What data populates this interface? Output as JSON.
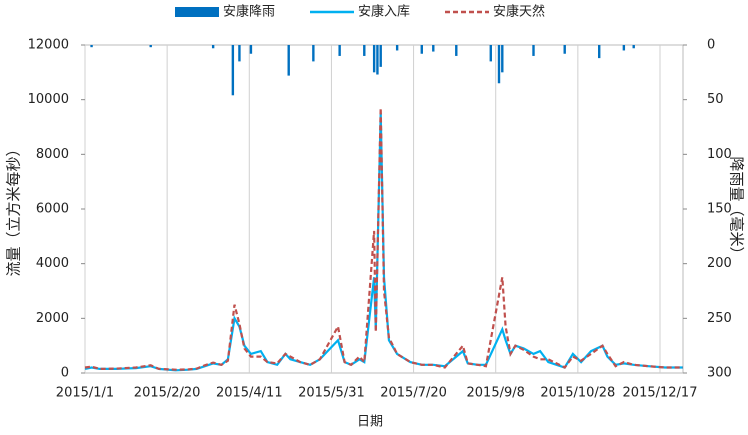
{
  "chart_data": {
    "type": "combo",
    "x_label": "日期",
    "y_label": "流量（立方米每秒）",
    "y2_label": "降雨量（毫米）",
    "xlim": [
      "2015/1/1",
      "2015/12/31"
    ],
    "xticks": [
      "2015/1/1",
      "2015/2/20",
      "2015/4/11",
      "2015/5/31",
      "2015/7/20",
      "2015/9/8",
      "2015/10/28",
      "2015/12/17"
    ],
    "ylim": [
      0,
      12000
    ],
    "yticks": [
      0,
      2000,
      4000,
      6000,
      8000,
      10000,
      12000
    ],
    "y2lim": [
      0,
      300
    ],
    "y2ticks": [
      0,
      50,
      100,
      150,
      200,
      250,
      300
    ],
    "y2_inverted": true,
    "grid": "x",
    "series": [
      {
        "name": "安康降雨",
        "type": "bar",
        "axis": "y2",
        "color": "#0070c0",
        "x": [
          "2015/1/5",
          "2015/2/10",
          "2015/3/20",
          "2015/4/1",
          "2015/4/5",
          "2015/4/12",
          "2015/5/5",
          "2015/5/20",
          "2015/6/5",
          "2015/6/20",
          "2015/6/26",
          "2015/6/28",
          "2015/6/30",
          "2015/7/10",
          "2015/7/25",
          "2015/8/1",
          "2015/8/15",
          "2015/9/5",
          "2015/9/10",
          "2015/9/12",
          "2015/10/1",
          "2015/10/20",
          "2015/11/10",
          "2015/11/25",
          "2015/12/1"
        ],
        "values": [
          2,
          2,
          3,
          46,
          15,
          8,
          28,
          15,
          10,
          10,
          25,
          27,
          20,
          5,
          8,
          6,
          10,
          15,
          35,
          25,
          10,
          8,
          12,
          5,
          3
        ]
      },
      {
        "name": "安康入库",
        "type": "line",
        "color": "#00b0f0",
        "x": [
          "2015/1/1",
          "2015/1/5",
          "2015/1/10",
          "2015/1/20",
          "2015/2/1",
          "2015/2/10",
          "2015/2/15",
          "2015/2/25",
          "2015/3/5",
          "2015/3/10",
          "2015/3/15",
          "2015/3/20",
          "2015/3/25",
          "2015/3/29",
          "2015/4/2",
          "2015/4/5",
          "2015/4/8",
          "2015/4/12",
          "2015/4/18",
          "2015/4/22",
          "2015/4/28",
          "2015/5/3",
          "2015/5/6",
          "2015/5/12",
          "2015/5/18",
          "2015/5/24",
          "2015/6/4",
          "2015/6/8",
          "2015/6/12",
          "2015/6/17",
          "2015/6/20",
          "2015/6/26",
          "2015/6/27",
          "2015/6/30",
          "2015/7/2",
          "2015/7/5",
          "2015/7/10",
          "2015/7/18",
          "2015/7/25",
          "2015/8/1",
          "2015/8/8",
          "2015/8/19",
          "2015/8/22",
          "2015/8/28",
          "2015/9/2",
          "2015/9/12",
          "2015/9/14",
          "2015/9/17",
          "2015/9/20",
          "2015/9/25",
          "2015/10/1",
          "2015/10/5",
          "2015/10/10",
          "2015/10/15",
          "2015/10/20",
          "2015/10/25",
          "2015/10/30",
          "2015/11/5",
          "2015/11/12",
          "2015/11/15",
          "2015/11/20",
          "2015/11/25",
          "2015/12/1",
          "2015/12/10",
          "2015/12/20",
          "2015/12/31"
        ],
        "values": [
          150,
          200,
          150,
          150,
          180,
          250,
          150,
          100,
          120,
          150,
          250,
          350,
          300,
          500,
          2000,
          1700,
          1000,
          700,
          800,
          400,
          300,
          700,
          500,
          400,
          300,
          500,
          1200,
          400,
          300,
          500,
          400,
          3500,
          1600,
          9500,
          3500,
          1200,
          700,
          400,
          300,
          300,
          250,
          800,
          350,
          300,
          300,
          1600,
          1200,
          700,
          1000,
          900,
          700,
          800,
          400,
          300,
          200,
          700,
          400,
          800,
          1000,
          600,
          300,
          350,
          300,
          250,
          200,
          200
        ]
      },
      {
        "name": "安康天然",
        "type": "line",
        "dashed": true,
        "color": "#c0504d",
        "x": [
          "2015/1/1",
          "2015/1/5",
          "2015/1/10",
          "2015/1/20",
          "2015/2/1",
          "2015/2/10",
          "2015/2/15",
          "2015/2/25",
          "2015/3/5",
          "2015/3/10",
          "2015/3/15",
          "2015/3/20",
          "2015/3/25",
          "2015/3/29",
          "2015/4/2",
          "2015/4/5",
          "2015/4/8",
          "2015/4/12",
          "2015/4/18",
          "2015/4/22",
          "2015/4/28",
          "2015/5/3",
          "2015/5/6",
          "2015/5/12",
          "2015/5/18",
          "2015/5/24",
          "2015/6/4",
          "2015/6/8",
          "2015/6/12",
          "2015/6/17",
          "2015/6/20",
          "2015/6/26",
          "2015/6/27",
          "2015/6/30",
          "2015/7/2",
          "2015/7/5",
          "2015/7/10",
          "2015/7/18",
          "2015/7/25",
          "2015/8/1",
          "2015/8/8",
          "2015/8/19",
          "2015/8/22",
          "2015/8/28",
          "2015/9/2",
          "2015/9/12",
          "2015/9/14",
          "2015/9/17",
          "2015/9/20",
          "2015/9/25",
          "2015/10/1",
          "2015/10/5",
          "2015/10/10",
          "2015/10/15",
          "2015/10/20",
          "2015/10/25",
          "2015/10/30",
          "2015/11/5",
          "2015/11/12",
          "2015/11/15",
          "2015/11/20",
          "2015/11/25",
          "2015/12/1",
          "2015/12/10",
          "2015/12/20",
          "2015/12/31"
        ],
        "values": [
          200,
          230,
          150,
          160,
          200,
          280,
          150,
          120,
          130,
          160,
          280,
          380,
          300,
          450,
          2500,
          1800,
          900,
          600,
          600,
          400,
          350,
          700,
          600,
          400,
          300,
          500,
          1700,
          400,
          300,
          600,
          400,
          5200,
          1500,
          9700,
          3000,
          1300,
          700,
          400,
          300,
          300,
          200,
          1000,
          350,
          300,
          250,
          3500,
          1700,
          700,
          1000,
          850,
          600,
          500,
          500,
          350,
          200,
          600,
          450,
          700,
          1000,
          700,
          250,
          400,
          300,
          250,
          200,
          200
        ]
      }
    ]
  }
}
